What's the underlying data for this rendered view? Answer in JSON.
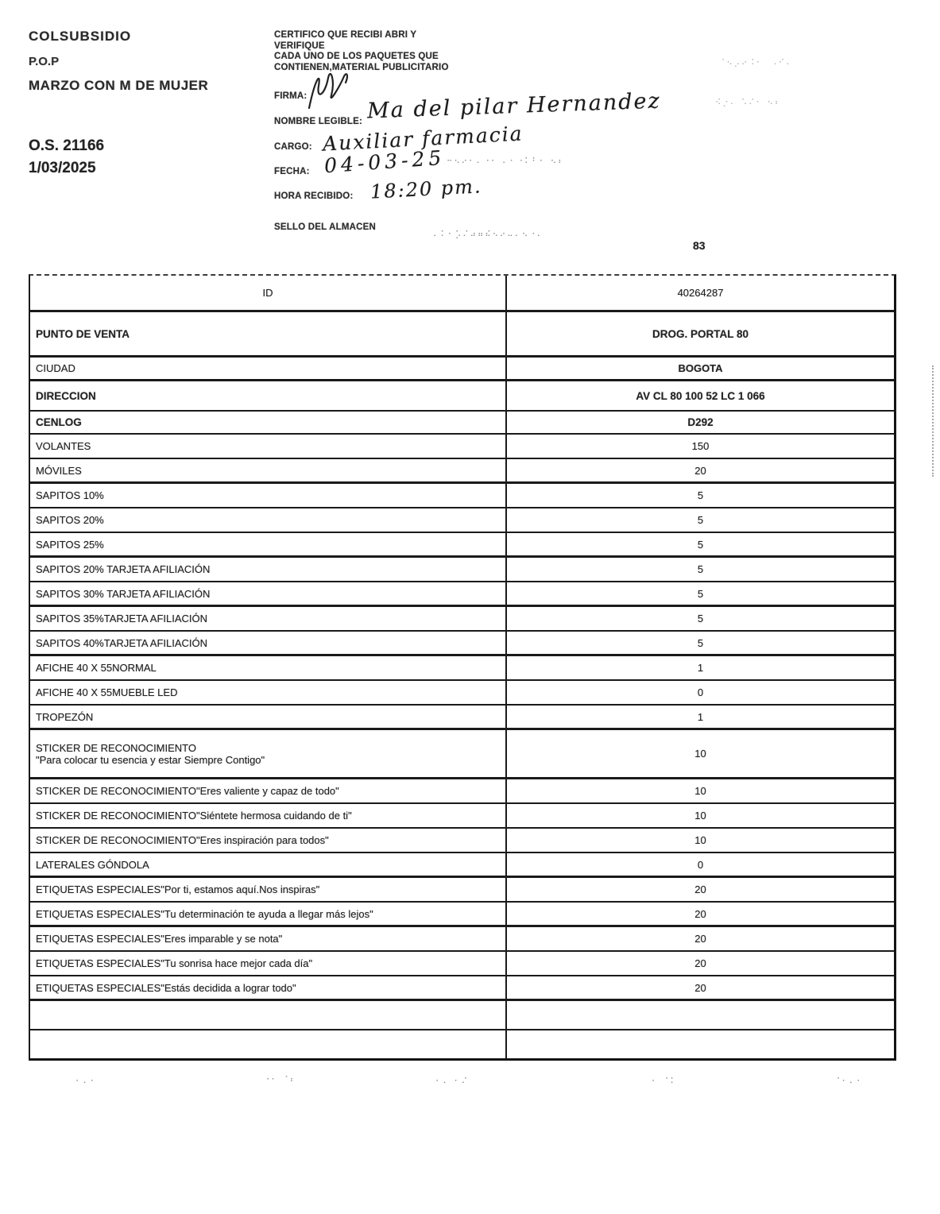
{
  "page": {
    "page_number": "83"
  },
  "header_left": {
    "brand": "COLSUBSIDIO",
    "material_type": "P.O.P",
    "campaign": "MARZO CON M DE MUJER",
    "order_number": "O.S. 21166",
    "order_date": "1/03/2025"
  },
  "certificate": {
    "statement_lines": [
      "CERTIFICO QUE RECIBI ABRI Y",
      "VERIFIQUE",
      "CADA  UNO DE LOS PAQUETES QUE",
      "CONTIENEN,MATERIAL PUBLICITARIO"
    ],
    "fields": [
      {
        "label": "FIRMA:",
        "value": ""
      },
      {
        "label": "NOMBRE LEGIBLE:",
        "value": "Ma del pilar Hernandez"
      },
      {
        "label": "CARGO:",
        "value": "Auxiliar farmacia"
      },
      {
        "label": "FECHA:",
        "value": "04-03-25"
      },
      {
        "label": "HORA RECIBIDO:",
        "value": "18:20 pm."
      },
      {
        "label": "SELLO DEL ALMACEN",
        "value": ""
      }
    ]
  },
  "table": {
    "rows": [
      {
        "l": "ID",
        "v": "40264287",
        "k": "rid"
      },
      {
        "l": "PUNTO DE VENTA",
        "v": "DROG. PORTAL 80",
        "k": "rpv"
      },
      {
        "l": "CIUDAD",
        "v": "BOGOTA",
        "k": "rciudad"
      },
      {
        "l": "DIRECCION",
        "v": "AV CL 80 100 52 LC 1 066",
        "k": "rdir"
      },
      {
        "l": "CENLOG",
        "v": "D292",
        "k": "rcen"
      },
      {
        "l": "VOLANTES",
        "v": "150",
        "k": "item"
      },
      {
        "l": "MÓVILES",
        "v": "20",
        "k": "item"
      },
      {
        "l": "SAPITOS 10%",
        "v": "5",
        "k": "item"
      },
      {
        "l": "SAPITOS 20%",
        "v": "5",
        "k": "item"
      },
      {
        "l": "SAPITOS 25%",
        "v": "5",
        "k": "item"
      },
      {
        "l": "SAPITOS 20% TARJETA AFILIACIÓN",
        "v": "5",
        "k": "item"
      },
      {
        "l": "SAPITOS 30% TARJETA AFILIACIÓN",
        "v": "5",
        "k": "item"
      },
      {
        "l": "SAPITOS 35%TARJETA AFILIACIÓN",
        "v": "5",
        "k": "item"
      },
      {
        "l": "SAPITOS 40%TARJETA AFILIACIÓN",
        "v": "5",
        "k": "item"
      },
      {
        "l": "AFICHE 40 X 55NORMAL",
        "v": "1",
        "k": "item"
      },
      {
        "l": "AFICHE 40 X 55MUEBLE LED",
        "v": "0",
        "k": "item"
      },
      {
        "l": "TROPEZÓN",
        "v": "1",
        "k": "item"
      },
      {
        "l": "STICKER DE RECONOCIMIENTO",
        "l2": "\"Para colocar tu esencia y estar Siempre Contigo\"",
        "v": "10",
        "k": "item2"
      },
      {
        "l": "STICKER DE RECONOCIMIENTO\"Eres valiente y capaz de todo\"",
        "v": "10",
        "k": "item"
      },
      {
        "l": "STICKER DE RECONOCIMIENTO\"Siéntete hermosa cuidando de ti\"",
        "v": "10",
        "k": "item"
      },
      {
        "l": "STICKER DE RECONOCIMIENTO\"Eres inspiración para todos\"",
        "v": "10",
        "k": "item"
      },
      {
        "l": "LATERALES GÓNDOLA",
        "v": "0",
        "k": "item"
      },
      {
        "l": "ETIQUETAS ESPECIALES\"Por ti, estamos aquí.Nos inspiras\"",
        "v": "20",
        "k": "item"
      },
      {
        "l": "ETIQUETAS ESPECIALES\"Tu determinación te ayuda a llegar más lejos\"",
        "v": "20",
        "k": "item"
      },
      {
        "l": "ETIQUETAS ESPECIALES\"Eres imparable y se nota\"",
        "v": "20",
        "k": "item"
      },
      {
        "l": "ETIQUETAS ESPECIALES\"Tu sonrisa hace mejor cada día\"",
        "v": "20",
        "k": "item"
      },
      {
        "l": "ETIQUETAS ESPECIALES\"Estás decidida a lograr todo\"",
        "v": "20",
        "k": "item"
      },
      {
        "l": "",
        "v": "",
        "k": "rempty"
      },
      {
        "l": "",
        "v": "",
        "k": "rempty2"
      }
    ]
  }
}
